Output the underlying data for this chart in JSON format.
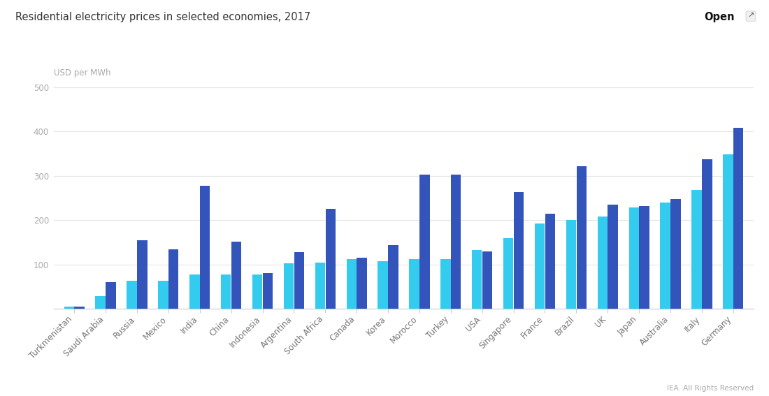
{
  "title": "Residential electricity prices in selected economies, 2017",
  "ylabel": "USD per MWh",
  "open_label": "Open",
  "footer": "IEA. All Rights Reserved",
  "categories": [
    "Turkmenistan",
    "Saudi Arabia",
    "Russia",
    "Mexico",
    "India",
    "China",
    "Indonesia",
    "Argentina",
    "South Africa",
    "Canada",
    "Korea",
    "Morocco",
    "Turkey",
    "USA",
    "Singapore",
    "France",
    "Brazil",
    "UK",
    "Japan",
    "Australia",
    "Italy",
    "Germany"
  ],
  "dark_blue_values": [
    5,
    60,
    155,
    135,
    278,
    152,
    80,
    128,
    225,
    115,
    143,
    303,
    303,
    130,
    263,
    215,
    322,
    235,
    232,
    248,
    338,
    408
  ],
  "light_blue_values": [
    5,
    28,
    63,
    63,
    78,
    78,
    78,
    103,
    105,
    112,
    108,
    112,
    113,
    133,
    160,
    192,
    200,
    208,
    228,
    240,
    268,
    348
  ],
  "dark_blue_color": "#3355bb",
  "light_blue_color": "#33ccee",
  "ylim": [
    0,
    500
  ],
  "yticks": [
    0,
    100,
    200,
    300,
    400,
    500
  ],
  "background_color": "#ffffff",
  "grid_color": "#e5e5e5",
  "title_fontsize": 10.5,
  "tick_fontsize": 8.5,
  "ylabel_fontsize": 8.5,
  "bar_width": 0.32,
  "bar_gap": 0.01
}
